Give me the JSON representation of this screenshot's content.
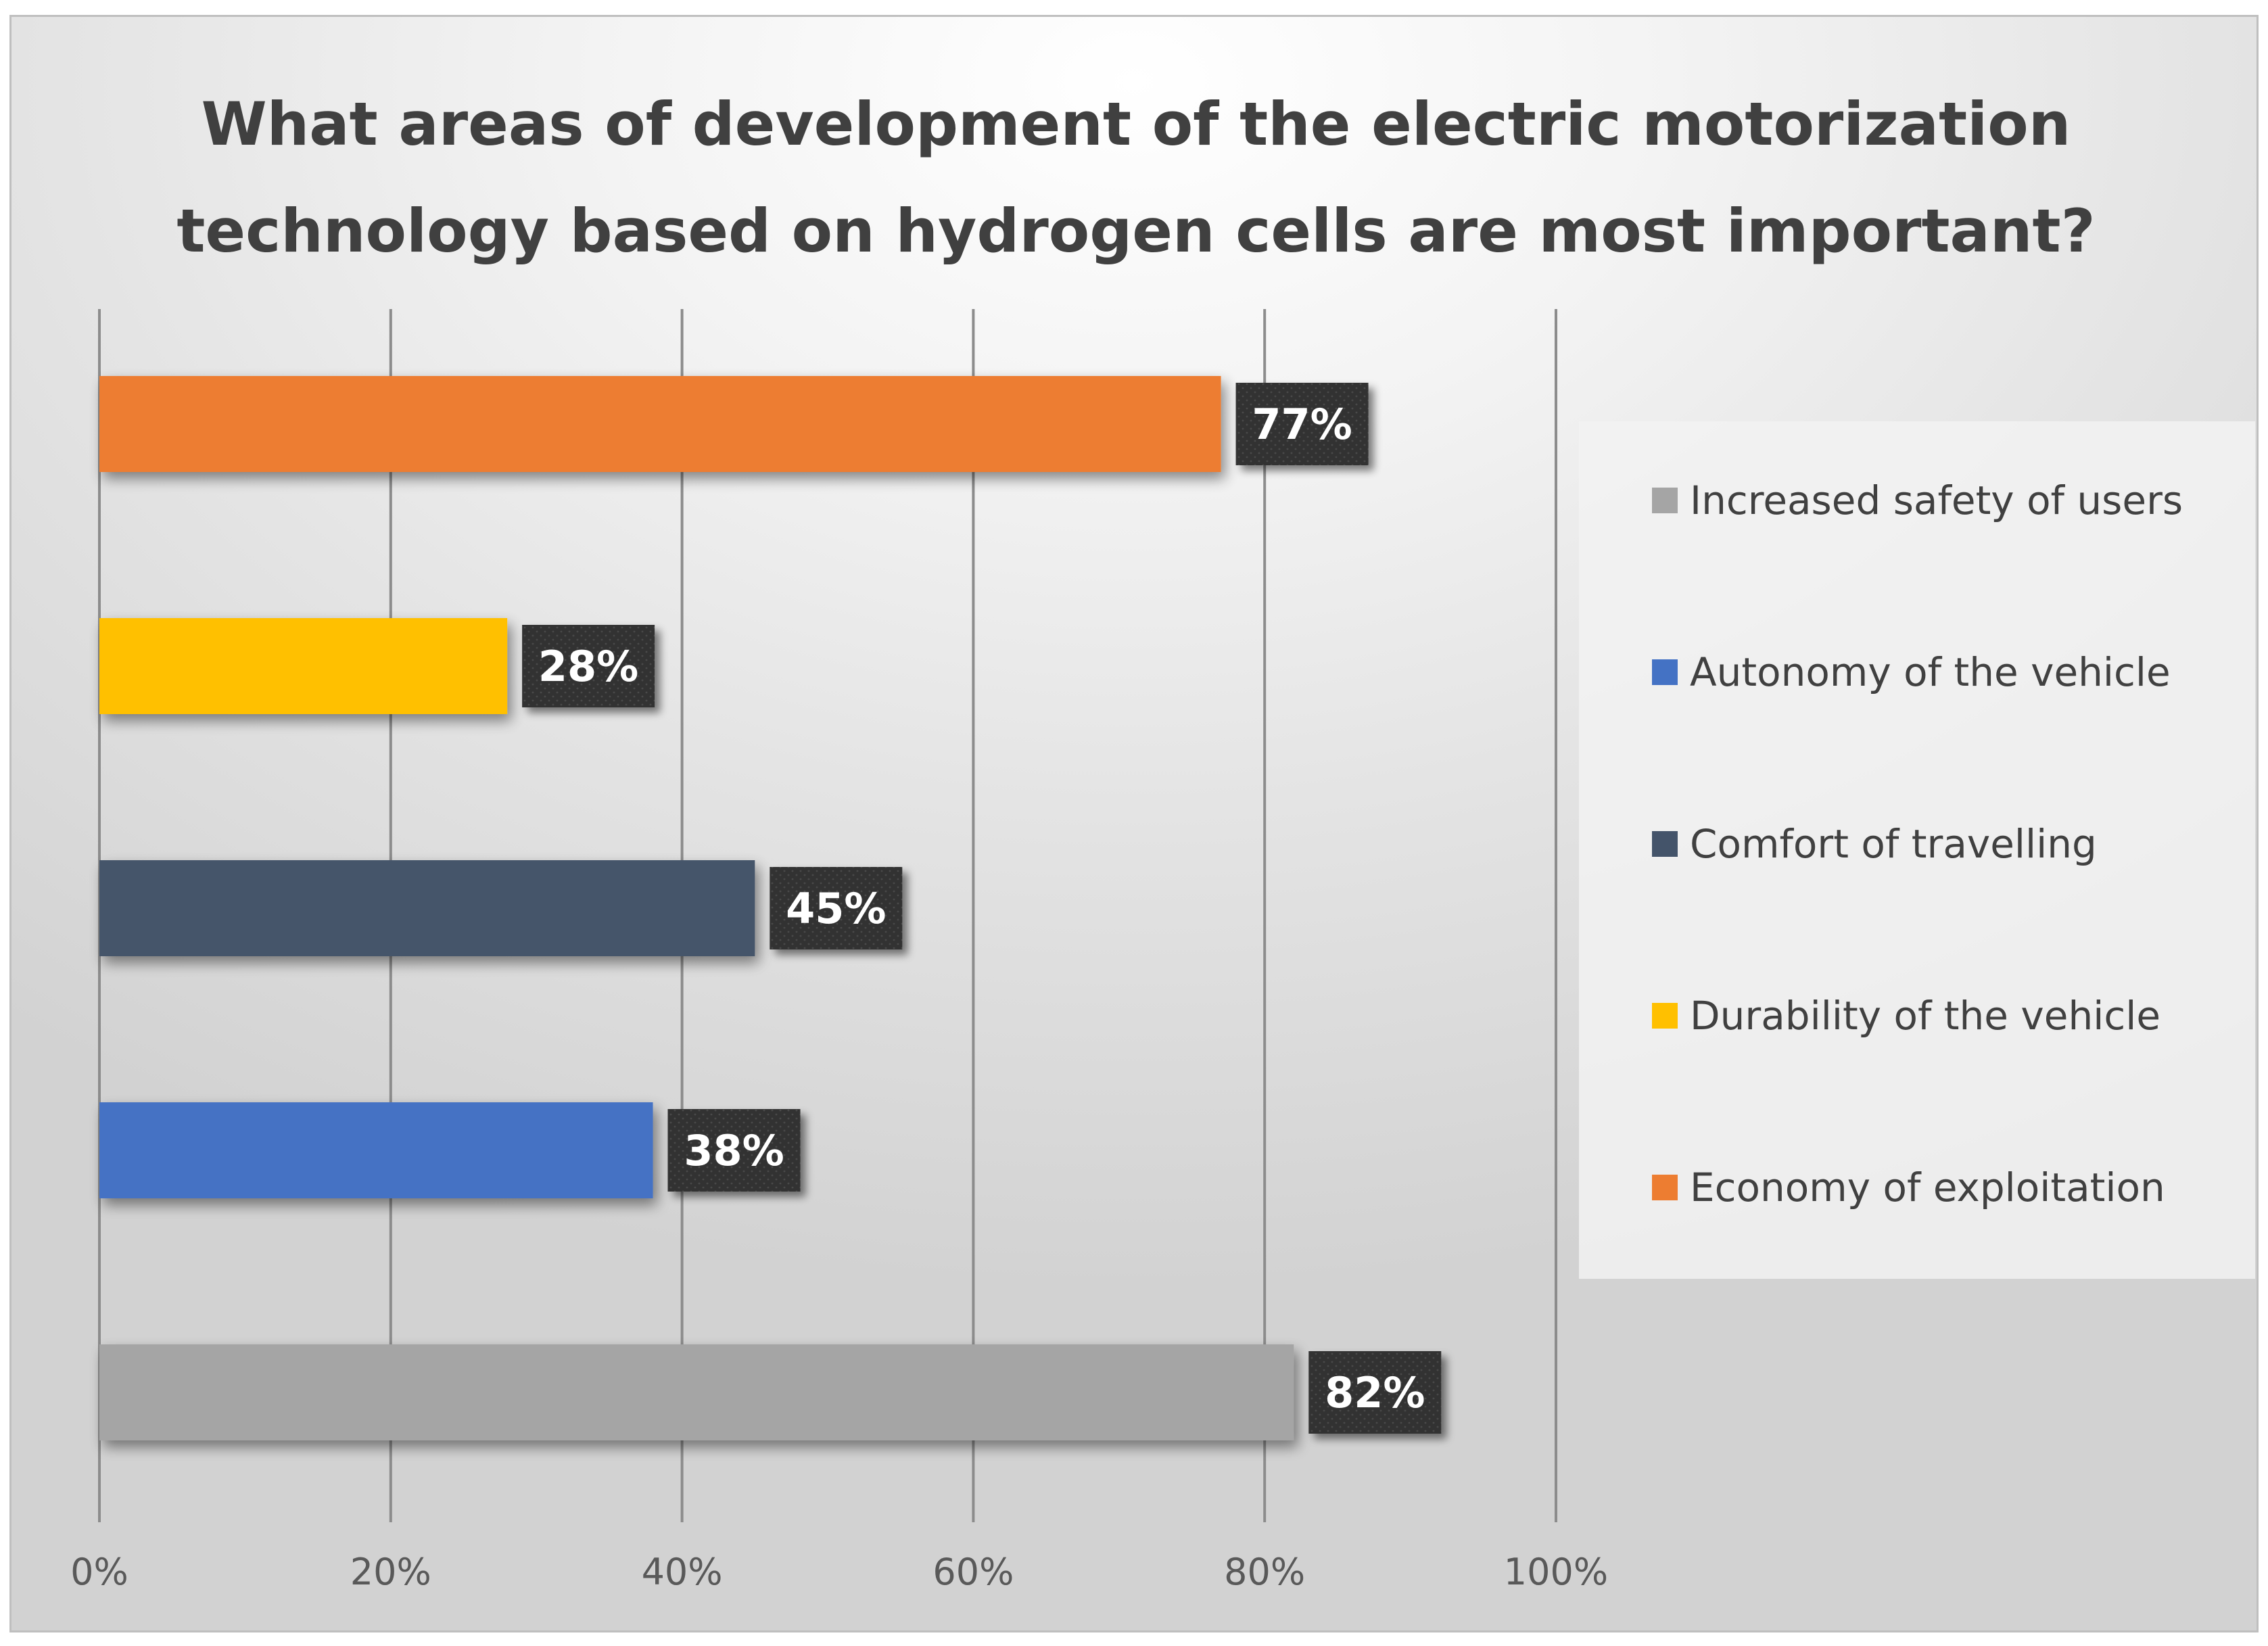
{
  "chart_data": {
    "type": "bar",
    "orientation": "horizontal",
    "title_lines": [
      "What areas of development of the electric motorization",
      "technology based on hydrogen cells are most important?"
    ],
    "categories": [
      "Increased safety of users",
      "Autonomy of the vehicle",
      "Comfort of travelling",
      "Durability of the vehicle",
      "Economy of exploitation"
    ],
    "values": [
      82,
      38,
      45,
      28,
      77
    ],
    "data_labels": [
      "82%",
      "38%",
      "45%",
      "28%",
      "77%"
    ],
    "colors": [
      "#a5a5a5",
      "#4472c4",
      "#44546a",
      "#ffc000",
      "#ed7d31"
    ],
    "x_ticks": [
      0,
      20,
      40,
      60,
      80,
      100
    ],
    "x_tick_labels": [
      "0%",
      "20%",
      "40%",
      "60%",
      "80%",
      "100%"
    ],
    "xlim": [
      0,
      100
    ],
    "grid": true,
    "legend_position": "right",
    "legend": [
      {
        "label": "Increased safety of users",
        "color": "#a5a5a5"
      },
      {
        "label": "Autonomy of the vehicle",
        "color": "#4472c4"
      },
      {
        "label": "Comfort of travelling",
        "color": "#44546a"
      },
      {
        "label": "Durability of the vehicle",
        "color": "#ffc000"
      },
      {
        "label": "Economy of exploitation",
        "color": "#ed7d31"
      }
    ]
  }
}
